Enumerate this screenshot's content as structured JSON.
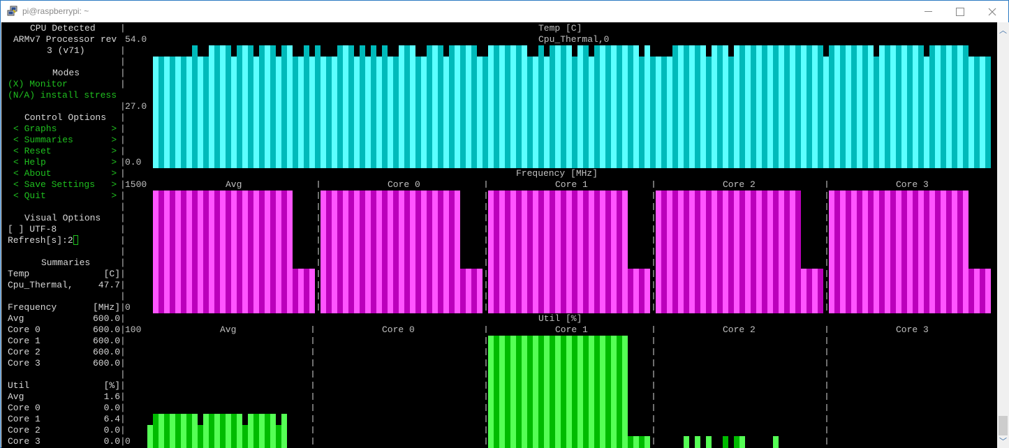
{
  "window": {
    "title": "pi@raspberrypi: ~",
    "minimize_glyph": "—",
    "maximize_glyph": "☐",
    "close_glyph": "✕"
  },
  "sidebar": {
    "cpu_header": "CPU Detected",
    "cpu_model_line1": "ARMv7 Processor rev",
    "cpu_model_line2": "3 (v71)",
    "modes_header": "Modes",
    "modes": [
      "(X) Monitor",
      "(N/A) install stress"
    ],
    "control_header": "Control Options",
    "controls": [
      {
        "label": "< Graphs          >"
      },
      {
        "label": "< Summaries       >"
      },
      {
        "label": "< Reset           >"
      },
      {
        "label": "< Help            >"
      },
      {
        "label": "< About           >"
      },
      {
        "label": "< Save Settings   >"
      },
      {
        "label": "< Quit            >"
      }
    ],
    "visual_header": "Visual Options",
    "utf8_option": "[ ] UTF-8",
    "refresh_label": "Refresh[s]:2",
    "summaries_header": "Summaries",
    "summary_rows": [
      {
        "name": "Temp",
        "value": "[C]"
      },
      {
        "name": "Cpu_Thermal,",
        "value": "47.7"
      },
      {
        "name": "",
        "value": ""
      },
      {
        "name": "Frequency",
        "value": "[MHz]"
      },
      {
        "name": "Avg",
        "value": "600.0"
      },
      {
        "name": "Core 0",
        "value": "600.0"
      },
      {
        "name": "Core 1",
        "value": "600.0"
      },
      {
        "name": "Core 2",
        "value": "600.0"
      },
      {
        "name": "Core 3",
        "value": "600.0"
      },
      {
        "name": "",
        "value": ""
      },
      {
        "name": "Util",
        "value": "[%]"
      },
      {
        "name": "Avg",
        "value": "1.6"
      },
      {
        "name": "Core 0",
        "value": "0.0"
      },
      {
        "name": "Core 1",
        "value": "6.4"
      },
      {
        "name": "Core 2",
        "value": "0.0"
      },
      {
        "name": "Core 3",
        "value": "0.0"
      }
    ]
  },
  "graphs": {
    "temp": {
      "title": "Temp [C]",
      "subtitle": "Cpu_Thermal,0",
      "ticks": [
        "54.0",
        "27.0",
        "0.0"
      ],
      "tall_indices": [
        7,
        10,
        11,
        12,
        13,
        15,
        16,
        17,
        19,
        20,
        21,
        23,
        24,
        27,
        29,
        33,
        34,
        35,
        37,
        39,
        41,
        44,
        45,
        46,
        49,
        50,
        51,
        53,
        54,
        55,
        56,
        57,
        60,
        61,
        62,
        63,
        64,
        65,
        66,
        69,
        71,
        72,
        73,
        74,
        76,
        77,
        79,
        80,
        81,
        82,
        83,
        84,
        85,
        86,
        88,
        93,
        94,
        95,
        96,
        97,
        98,
        100,
        101,
        102,
        104,
        105,
        106,
        107,
        108,
        109,
        110,
        111,
        112,
        113,
        114,
        115,
        116,
        117,
        118,
        119,
        121,
        122,
        123,
        124,
        125,
        126,
        127,
        128,
        130,
        131,
        132,
        133,
        134,
        135,
        136,
        137,
        139,
        140,
        141,
        142,
        143,
        144,
        145
      ],
      "bar_count": 150,
      "color_light": "#5cffff",
      "color_dark": "#00baba"
    },
    "frequency": {
      "title": "Frequency [MHz]",
      "ticks": [
        "1500",
        "0"
      ],
      "panels": [
        "Avg",
        "Core 0",
        "Core 1",
        "Core 2",
        "Core 3"
      ],
      "color_light": "#ff55ff",
      "color_dark": "#bb00bb"
    },
    "util": {
      "title": "Util [%]",
      "ticks": [
        "100",
        "0"
      ],
      "panels": [
        "Avg",
        "Core 0",
        "Core 1",
        "Core 2",
        "Core 3"
      ],
      "color_light": "#55ff55",
      "color_dark": "#00bb00"
    }
  },
  "chart_data": [
    {
      "type": "bar",
      "title": "Temp [C]",
      "legend": [
        "Cpu_Thermal,0"
      ],
      "ylim": [
        0,
        54
      ],
      "ytick_labels": [
        "54.0",
        "27.0",
        "0.0"
      ],
      "note": "150 bars alternating between ~48 and ~51 °C; current reading 47.7"
    },
    {
      "type": "bar",
      "title": "Frequency [MHz]",
      "ylim": [
        0,
        1500
      ],
      "series": [
        {
          "name": "Avg",
          "values_tall": 1500,
          "values_recent": 600
        },
        {
          "name": "Core 0",
          "values_tall": 1500,
          "values_recent": 600
        },
        {
          "name": "Core 1",
          "values_tall": 1500,
          "values_recent": 600
        },
        {
          "name": "Core 2",
          "values_tall": 1500,
          "values_recent": 600
        },
        {
          "name": "Core 3",
          "values_tall": 1500,
          "values_recent": 600
        }
      ]
    },
    {
      "type": "bar",
      "title": "Util [%]",
      "ylim": [
        0,
        100
      ],
      "series": [
        {
          "name": "Avg",
          "approx_peak": 28
        },
        {
          "name": "Core 0",
          "approx_peak": 0
        },
        {
          "name": "Core 1",
          "approx_peak": 100,
          "recent": 9
        },
        {
          "name": "Core 2",
          "approx_peak": 9
        },
        {
          "name": "Core 3",
          "approx_peak": 0
        }
      ]
    }
  ]
}
